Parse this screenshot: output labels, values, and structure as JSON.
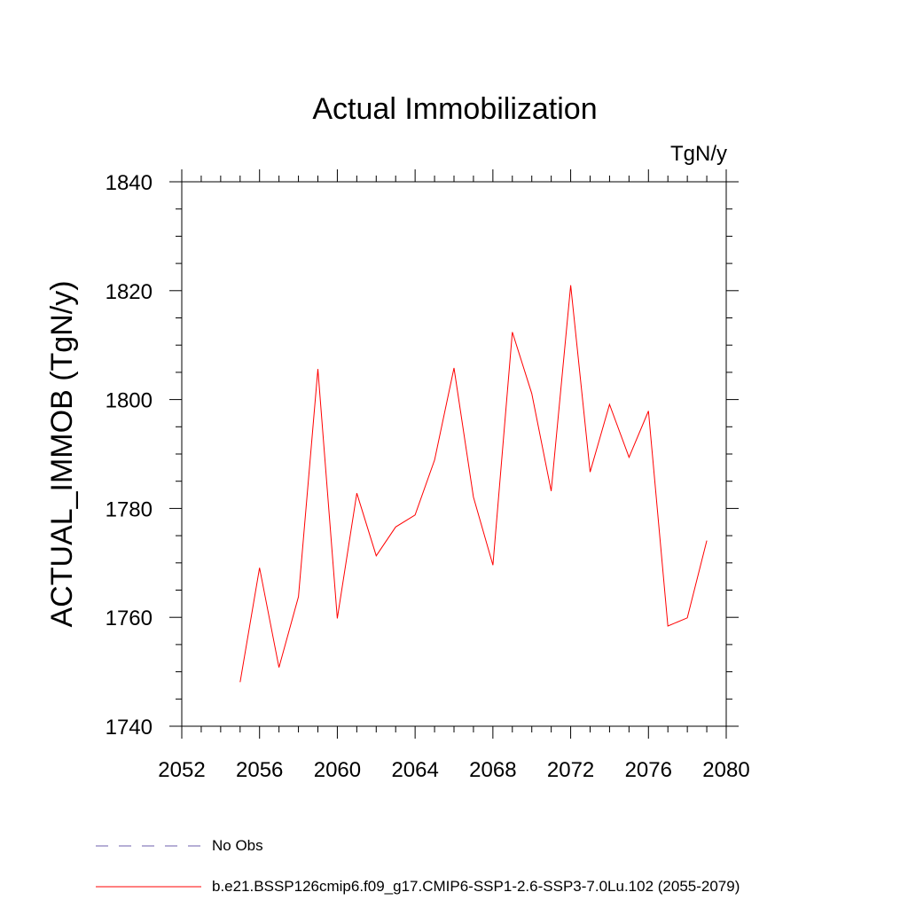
{
  "chart_data": {
    "type": "line",
    "title": "Actual Immobilization",
    "units_label": "TgN/y",
    "ylabel": "ACTUAL_IMMOB  (TgN/y)",
    "xlabel": "",
    "xlim": [
      2052,
      2080
    ],
    "ylim": [
      1740,
      1840
    ],
    "x_ticks": [
      2052,
      2056,
      2060,
      2064,
      2068,
      2072,
      2076,
      2080
    ],
    "y_ticks": [
      1740,
      1760,
      1780,
      1800,
      1820,
      1840
    ],
    "x_tick_labels": [
      "2052",
      "2056",
      "2060",
      "2064",
      "2068",
      "2072",
      "2076",
      "2080"
    ],
    "y_tick_labels": [
      "1740",
      "1760",
      "1780",
      "1800",
      "1820",
      "1840"
    ],
    "grid": false,
    "legend_position": "bottom-left",
    "series": [
      {
        "name": "b.e21.BSSP126cmip6.f09_g17.CMIP6-SSP1-2.6-SSP3-7.0Lu.102 (2055-2079)",
        "color": "#ff0000",
        "x": [
          2055,
          2056,
          2057,
          2058,
          2059,
          2060,
          2061,
          2062,
          2063,
          2064,
          2065,
          2066,
          2067,
          2068,
          2069,
          2070,
          2071,
          2072,
          2073,
          2074,
          2075,
          2076,
          2077,
          2078,
          2079
        ],
        "values": [
          1748.1,
          1769.1,
          1750.8,
          1763.8,
          1805.6,
          1759.8,
          1782.8,
          1771.3,
          1776.6,
          1778.8,
          1788.9,
          1805.8,
          1782.1,
          1769.6,
          1812.4,
          1801.1,
          1783.2,
          1821.0,
          1786.7,
          1799.1,
          1789.4,
          1797.9,
          1758.4,
          1759.9,
          1774.1
        ]
      }
    ],
    "legend": [
      {
        "label": "No Obs",
        "color": "#6e5fae",
        "style": "dashed"
      },
      {
        "label": "b.e21.BSSP126cmip6.f09_g17.CMIP6-SSP1-2.6-SSP3-7.0Lu.102 (2055-2079)",
        "color": "#ff0000",
        "style": "solid"
      }
    ]
  }
}
